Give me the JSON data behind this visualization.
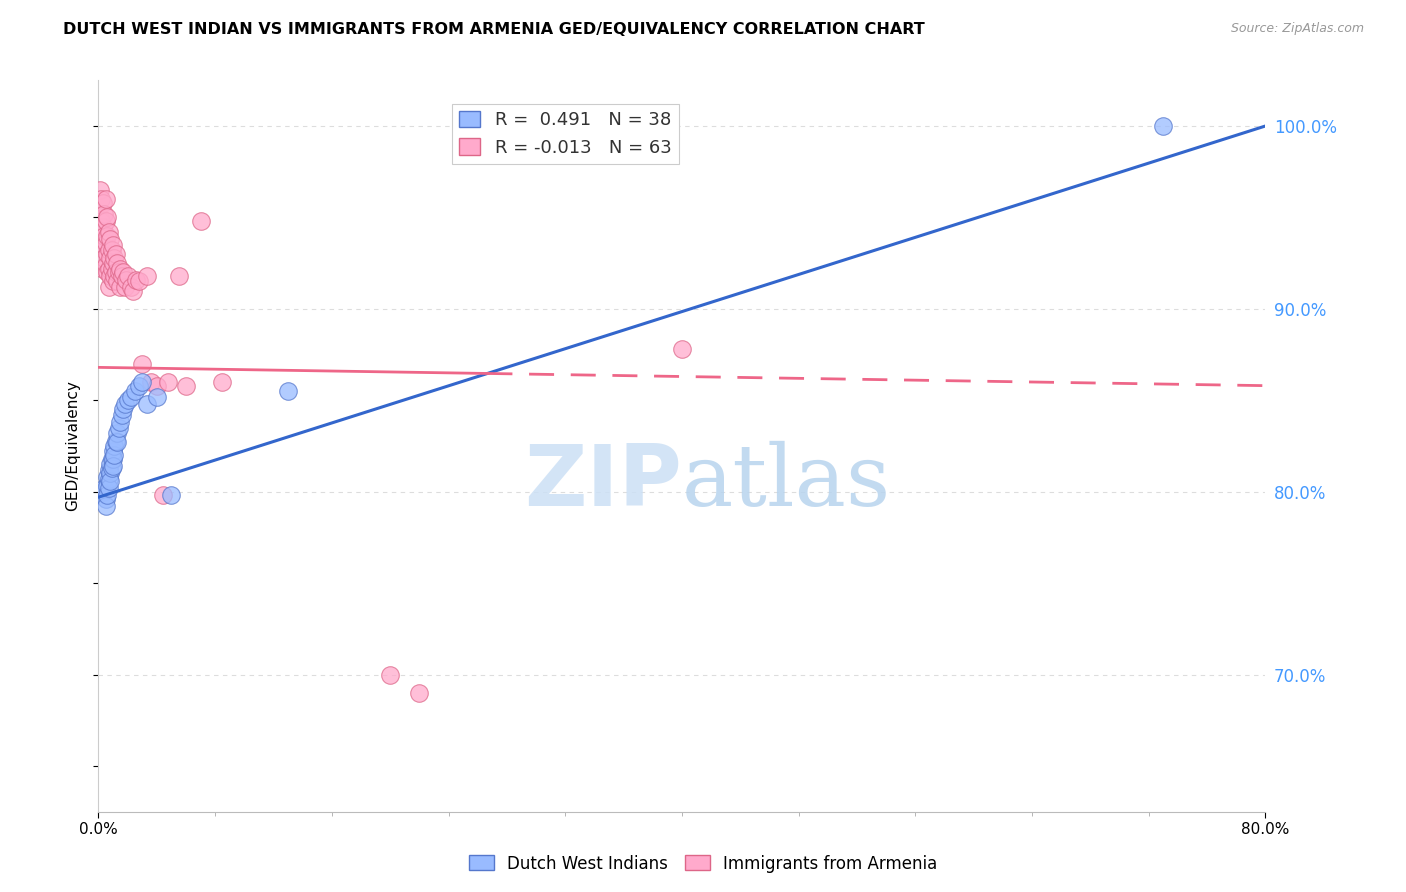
{
  "title": "DUTCH WEST INDIAN VS IMMIGRANTS FROM ARMENIA GED/EQUIVALENCY CORRELATION CHART",
  "source": "Source: ZipAtlas.com",
  "ylabel": "GED/Equivalency",
  "legend_blue_label": "Dutch West Indians",
  "legend_pink_label": "Immigrants from Armenia",
  "legend_blue_r": "R =  0.491",
  "legend_blue_n": "N = 38",
  "legend_pink_r": "R = -0.013",
  "legend_pink_n": "N = 63",
  "xmin": 0.0,
  "xmax": 0.8,
  "ymin": 0.625,
  "ymax": 1.025,
  "blue_scatter_color": "#99bbff",
  "blue_edge_color": "#5577cc",
  "pink_scatter_color": "#ffaacc",
  "pink_edge_color": "#dd6688",
  "blue_line_color": "#3366cc",
  "pink_line_color": "#ee6688",
  "grid_color": "#dddddd",
  "watermark_color": "#cce0f5",
  "right_tick_color": "#4499ff",
  "blue_points_x": [
    0.003,
    0.004,
    0.005,
    0.005,
    0.006,
    0.006,
    0.006,
    0.007,
    0.007,
    0.007,
    0.008,
    0.008,
    0.008,
    0.009,
    0.009,
    0.01,
    0.01,
    0.01,
    0.011,
    0.011,
    0.012,
    0.013,
    0.013,
    0.014,
    0.015,
    0.016,
    0.017,
    0.018,
    0.02,
    0.022,
    0.025,
    0.028,
    0.03,
    0.033,
    0.04,
    0.05,
    0.13,
    0.73
  ],
  "blue_points_y": [
    0.8,
    0.802,
    0.796,
    0.792,
    0.808,
    0.803,
    0.798,
    0.812,
    0.807,
    0.802,
    0.815,
    0.81,
    0.806,
    0.818,
    0.813,
    0.822,
    0.818,
    0.814,
    0.825,
    0.82,
    0.828,
    0.832,
    0.827,
    0.835,
    0.838,
    0.842,
    0.845,
    0.848,
    0.85,
    0.852,
    0.855,
    0.858,
    0.86,
    0.848,
    0.852,
    0.798,
    0.855,
    1.0
  ],
  "pink_points_x": [
    0.001,
    0.001,
    0.002,
    0.002,
    0.002,
    0.003,
    0.003,
    0.003,
    0.003,
    0.004,
    0.004,
    0.004,
    0.005,
    0.005,
    0.005,
    0.005,
    0.006,
    0.006,
    0.006,
    0.006,
    0.007,
    0.007,
    0.007,
    0.007,
    0.008,
    0.008,
    0.008,
    0.009,
    0.009,
    0.01,
    0.01,
    0.01,
    0.011,
    0.011,
    0.012,
    0.012,
    0.013,
    0.013,
    0.014,
    0.015,
    0.015,
    0.016,
    0.017,
    0.018,
    0.019,
    0.02,
    0.022,
    0.024,
    0.026,
    0.028,
    0.03,
    0.033,
    0.036,
    0.04,
    0.044,
    0.048,
    0.055,
    0.06,
    0.07,
    0.085,
    0.2,
    0.22,
    0.4
  ],
  "pink_points_y": [
    0.965,
    0.95,
    0.96,
    0.948,
    0.936,
    0.958,
    0.945,
    0.933,
    0.922,
    0.952,
    0.94,
    0.928,
    0.96,
    0.948,
    0.936,
    0.924,
    0.95,
    0.94,
    0.93,
    0.92,
    0.942,
    0.932,
    0.922,
    0.912,
    0.938,
    0.928,
    0.918,
    0.932,
    0.922,
    0.935,
    0.925,
    0.915,
    0.928,
    0.918,
    0.93,
    0.92,
    0.925,
    0.915,
    0.92,
    0.922,
    0.912,
    0.918,
    0.92,
    0.912,
    0.916,
    0.918,
    0.912,
    0.91,
    0.916,
    0.915,
    0.87,
    0.918,
    0.86,
    0.858,
    0.798,
    0.86,
    0.918,
    0.858,
    0.948,
    0.86,
    0.7,
    0.69,
    0.878
  ],
  "blue_trendline_x0": 0.0,
  "blue_trendline_x1": 0.8,
  "blue_trendline_y0": 0.797,
  "blue_trendline_y1": 1.0,
  "pink_trendline_x0": 0.0,
  "pink_trendline_x1": 0.8,
  "pink_trendline_y0": 0.868,
  "pink_trendline_y1": 0.858
}
